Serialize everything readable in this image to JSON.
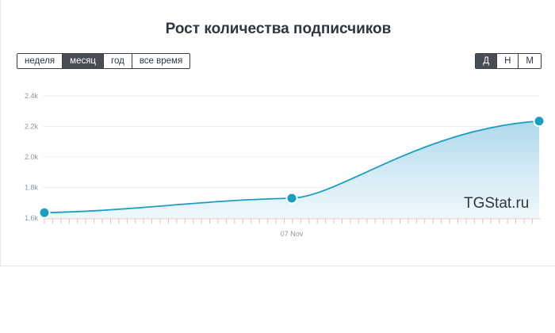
{
  "chart_data": {
    "type": "area",
    "title": "Рост количества подписчиков",
    "xlabel": "",
    "ylabel": "",
    "x_tick_labels": [
      "07 Nov"
    ],
    "y_ticks": [
      "1.6k",
      "1.8k",
      "2.0k",
      "2.2k",
      "2.4k"
    ],
    "ylim": [
      1600,
      2400
    ],
    "grid": true,
    "points": [
      {
        "x": "start",
        "y": 1635
      },
      {
        "x": "07 Nov",
        "y": 1730
      },
      {
        "x": "end",
        "y": 2235
      }
    ],
    "line_color": "#1a9fc0",
    "fill_color": "#cfe8f3"
  },
  "range_buttons": [
    {
      "label": "неделя",
      "active": false
    },
    {
      "label": "месяц",
      "active": true
    },
    {
      "label": "год",
      "active": false
    },
    {
      "label": "все время",
      "active": false
    }
  ],
  "scale_buttons": [
    {
      "label": "Д",
      "active": true
    },
    {
      "label": "Н",
      "active": false
    },
    {
      "label": "М",
      "active": false
    }
  ],
  "watermark": "TGStat.ru"
}
